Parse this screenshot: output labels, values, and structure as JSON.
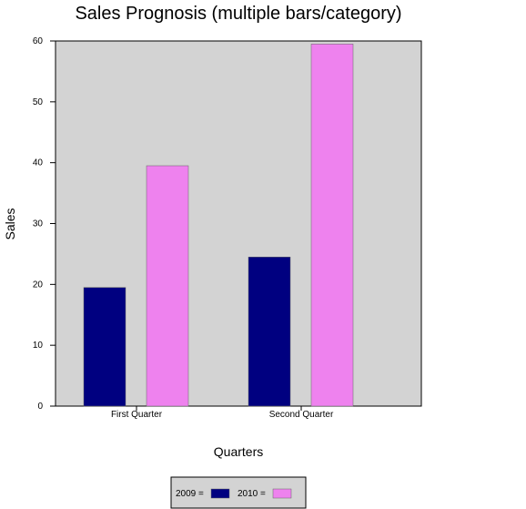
{
  "chart_data": {
    "type": "bar",
    "title": "Sales Prognosis (multiple bars/category)",
    "xlabel": "Quarters",
    "ylabel": "Sales",
    "categories": [
      "First Quarter",
      "Second Quarter"
    ],
    "series": [
      {
        "name": "2009",
        "values": [
          19.5,
          24.5
        ],
        "color": "#000080"
      },
      {
        "name": "2010",
        "values": [
          39.5,
          59.5
        ],
        "color": "#ee82ee"
      }
    ],
    "ylim": [
      0,
      60
    ],
    "yticks": [
      0,
      10,
      20,
      30,
      40,
      50,
      60
    ],
    "grid": false,
    "legend_position": "bottom",
    "legend_labels": [
      "2009 =",
      "2010 ="
    ],
    "plot_background": "#d3d3d3"
  }
}
